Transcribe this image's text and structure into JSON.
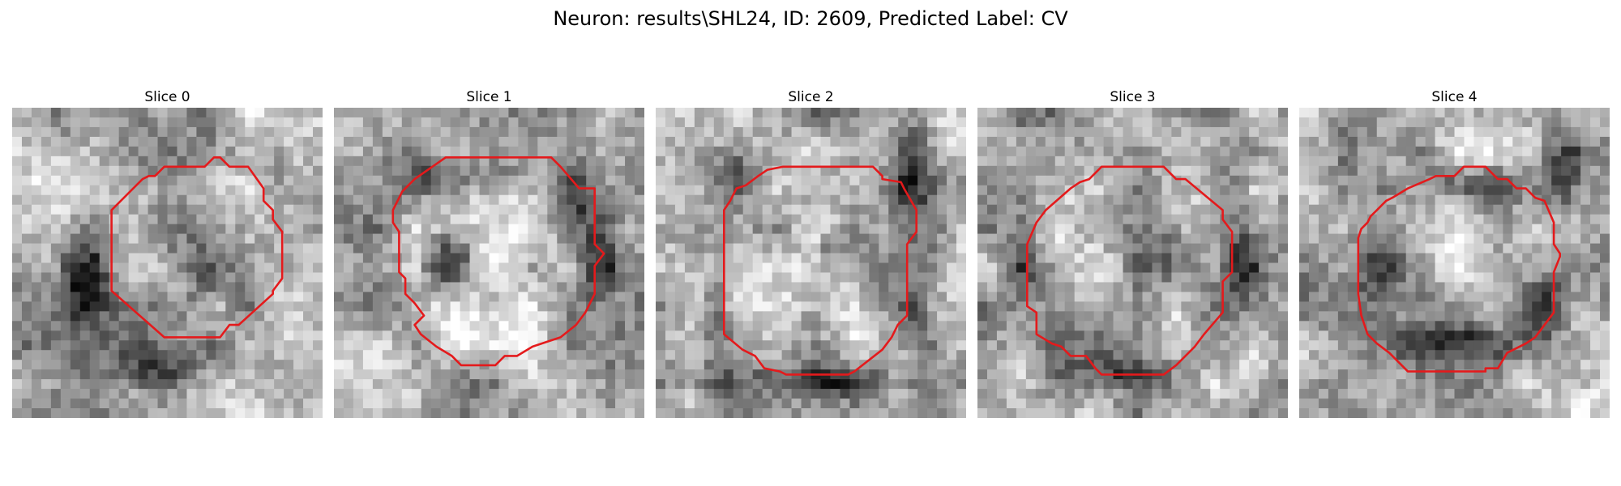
{
  "figure": {
    "title": "Neuron: results\\SHL24, ID: 2609, Predicted Label: CV"
  },
  "panels": [
    {
      "title": "Slice 0",
      "dark_blobs": [
        [
          0.22,
          0.55,
          0.08,
          0.14,
          0.85
        ],
        [
          0.45,
          0.82,
          0.12,
          0.08,
          0.6
        ],
        [
          0.62,
          0.55,
          0.1,
          0.1,
          0.45
        ],
        [
          0.85,
          0.2,
          0.06,
          0.1,
          0.35
        ]
      ],
      "light_blobs": [
        [
          0.53,
          0.54,
          0.07,
          0.07,
          0.7
        ],
        [
          0.2,
          0.2,
          0.15,
          0.12,
          0.35
        ],
        [
          0.5,
          0.95,
          0.3,
          0.06,
          0.3
        ]
      ],
      "contour": [
        [
          0.49,
          0.19
        ],
        [
          0.62,
          0.19
        ],
        [
          0.65,
          0.16
        ],
        [
          0.67,
          0.16
        ],
        [
          0.7,
          0.19
        ],
        [
          0.76,
          0.19
        ],
        [
          0.81,
          0.26
        ],
        [
          0.81,
          0.3
        ],
        [
          0.84,
          0.33
        ],
        [
          0.84,
          0.36
        ],
        [
          0.87,
          0.4
        ],
        [
          0.87,
          0.55
        ],
        [
          0.84,
          0.59
        ],
        [
          0.84,
          0.6
        ],
        [
          0.73,
          0.7
        ],
        [
          0.7,
          0.7
        ],
        [
          0.67,
          0.74
        ],
        [
          0.49,
          0.74
        ],
        [
          0.32,
          0.59
        ],
        [
          0.32,
          0.33
        ],
        [
          0.42,
          0.23
        ],
        [
          0.44,
          0.22
        ],
        [
          0.46,
          0.22
        ]
      ]
    },
    {
      "title": "Slice 1",
      "dark_blobs": [
        [
          0.37,
          0.5,
          0.08,
          0.1,
          0.9
        ],
        [
          0.78,
          0.28,
          0.08,
          0.14,
          0.8
        ],
        [
          0.85,
          0.5,
          0.06,
          0.12,
          0.7
        ],
        [
          0.3,
          0.2,
          0.12,
          0.08,
          0.5
        ],
        [
          0.5,
          0.22,
          0.12,
          0.06,
          0.45
        ]
      ],
      "light_blobs": [
        [
          0.55,
          0.45,
          0.15,
          0.15,
          0.55
        ],
        [
          0.4,
          0.65,
          0.12,
          0.12,
          0.55
        ],
        [
          0.55,
          0.7,
          0.1,
          0.08,
          0.4
        ]
      ],
      "contour": [
        [
          0.36,
          0.16
        ],
        [
          0.7,
          0.16
        ],
        [
          0.73,
          0.19
        ],
        [
          0.79,
          0.26
        ],
        [
          0.84,
          0.26
        ],
        [
          0.84,
          0.44
        ],
        [
          0.87,
          0.47
        ],
        [
          0.84,
          0.51
        ],
        [
          0.84,
          0.6
        ],
        [
          0.81,
          0.66
        ],
        [
          0.78,
          0.7
        ],
        [
          0.73,
          0.74
        ],
        [
          0.64,
          0.77
        ],
        [
          0.59,
          0.8
        ],
        [
          0.55,
          0.8
        ],
        [
          0.52,
          0.83
        ],
        [
          0.41,
          0.83
        ],
        [
          0.38,
          0.8
        ],
        [
          0.33,
          0.77
        ],
        [
          0.28,
          0.73
        ],
        [
          0.26,
          0.7
        ],
        [
          0.29,
          0.67
        ],
        [
          0.26,
          0.63
        ],
        [
          0.23,
          0.6
        ],
        [
          0.23,
          0.55
        ],
        [
          0.21,
          0.53
        ],
        [
          0.21,
          0.4
        ],
        [
          0.19,
          0.37
        ],
        [
          0.19,
          0.33
        ],
        [
          0.22,
          0.27
        ],
        [
          0.23,
          0.26
        ],
        [
          0.26,
          0.23
        ]
      ]
    },
    {
      "title": "Slice 2",
      "dark_blobs": [
        [
          0.82,
          0.2,
          0.06,
          0.18,
          0.8
        ],
        [
          0.5,
          0.88,
          0.3,
          0.05,
          0.75
        ],
        [
          0.2,
          0.7,
          0.05,
          0.18,
          0.6
        ],
        [
          0.85,
          0.65,
          0.06,
          0.15,
          0.55
        ],
        [
          0.25,
          0.2,
          0.1,
          0.06,
          0.4
        ],
        [
          0.55,
          0.45,
          0.08,
          0.05,
          0.4
        ]
      ],
      "light_blobs": [
        [
          0.45,
          0.55,
          0.2,
          0.2,
          0.5
        ],
        [
          0.1,
          0.92,
          0.08,
          0.06,
          0.6
        ],
        [
          0.95,
          0.1,
          0.05,
          0.1,
          0.4
        ]
      ],
      "contour": [
        [
          0.41,
          0.19
        ],
        [
          0.7,
          0.19
        ],
        [
          0.73,
          0.22
        ],
        [
          0.73,
          0.23
        ],
        [
          0.79,
          0.24
        ],
        [
          0.8,
          0.26
        ],
        [
          0.84,
          0.33
        ],
        [
          0.84,
          0.4
        ],
        [
          0.81,
          0.44
        ],
        [
          0.81,
          0.67
        ],
        [
          0.78,
          0.7
        ],
        [
          0.76,
          0.74
        ],
        [
          0.73,
          0.78
        ],
        [
          0.64,
          0.85
        ],
        [
          0.62,
          0.86
        ],
        [
          0.42,
          0.86
        ],
        [
          0.4,
          0.85
        ],
        [
          0.35,
          0.84
        ],
        [
          0.32,
          0.8
        ],
        [
          0.28,
          0.78
        ],
        [
          0.22,
          0.73
        ],
        [
          0.22,
          0.33
        ],
        [
          0.24,
          0.3
        ],
        [
          0.26,
          0.26
        ],
        [
          0.29,
          0.25
        ],
        [
          0.33,
          0.22
        ],
        [
          0.36,
          0.2
        ]
      ]
    },
    {
      "title": "Slice 3",
      "dark_blobs": [
        [
          0.85,
          0.45,
          0.06,
          0.14,
          0.75
        ],
        [
          0.25,
          0.75,
          0.08,
          0.08,
          0.6
        ],
        [
          0.45,
          0.85,
          0.15,
          0.05,
          0.55
        ],
        [
          0.8,
          0.25,
          0.06,
          0.1,
          0.45
        ],
        [
          0.55,
          0.45,
          0.12,
          0.12,
          0.35
        ],
        [
          0.15,
          0.5,
          0.05,
          0.15,
          0.45
        ]
      ],
      "light_blobs": [
        [
          0.4,
          0.5,
          0.1,
          0.12,
          0.45
        ],
        [
          0.6,
          0.3,
          0.1,
          0.08,
          0.4
        ],
        [
          0.9,
          0.85,
          0.08,
          0.1,
          0.4
        ]
      ],
      "contour": [
        [
          0.36,
          0.23
        ],
        [
          0.4,
          0.19
        ],
        [
          0.6,
          0.19
        ],
        [
          0.64,
          0.23
        ],
        [
          0.67,
          0.23
        ],
        [
          0.79,
          0.33
        ],
        [
          0.79,
          0.36
        ],
        [
          0.82,
          0.4
        ],
        [
          0.82,
          0.53
        ],
        [
          0.79,
          0.56
        ],
        [
          0.79,
          0.66
        ],
        [
          0.73,
          0.73
        ],
        [
          0.7,
          0.77
        ],
        [
          0.64,
          0.83
        ],
        [
          0.6,
          0.86
        ],
        [
          0.4,
          0.86
        ],
        [
          0.38,
          0.84
        ],
        [
          0.35,
          0.8
        ],
        [
          0.3,
          0.8
        ],
        [
          0.27,
          0.77
        ],
        [
          0.24,
          0.76
        ],
        [
          0.19,
          0.73
        ],
        [
          0.19,
          0.66
        ],
        [
          0.16,
          0.64
        ],
        [
          0.16,
          0.44
        ],
        [
          0.19,
          0.37
        ],
        [
          0.22,
          0.33
        ],
        [
          0.3,
          0.26
        ],
        [
          0.33,
          0.24
        ]
      ]
    },
    {
      "title": "Slice 4",
      "dark_blobs": [
        [
          0.52,
          0.76,
          0.3,
          0.07,
          0.95
        ],
        [
          0.25,
          0.55,
          0.08,
          0.18,
          0.6
        ],
        [
          0.8,
          0.6,
          0.08,
          0.15,
          0.55
        ],
        [
          0.55,
          0.25,
          0.25,
          0.06,
          0.5
        ],
        [
          0.85,
          0.2,
          0.06,
          0.15,
          0.6
        ],
        [
          0.15,
          0.15,
          0.05,
          0.12,
          0.45
        ]
      ],
      "light_blobs": [
        [
          0.55,
          0.45,
          0.18,
          0.12,
          0.6
        ],
        [
          0.6,
          0.1,
          0.15,
          0.08,
          0.4
        ],
        [
          0.9,
          0.95,
          0.1,
          0.05,
          0.4
        ]
      ],
      "contour": [
        [
          0.35,
          0.26
        ],
        [
          0.42,
          0.23
        ],
        [
          0.44,
          0.22
        ],
        [
          0.5,
          0.22
        ],
        [
          0.53,
          0.19
        ],
        [
          0.6,
          0.19
        ],
        [
          0.64,
          0.23
        ],
        [
          0.67,
          0.23
        ],
        [
          0.7,
          0.26
        ],
        [
          0.73,
          0.26
        ],
        [
          0.76,
          0.29
        ],
        [
          0.79,
          0.3
        ],
        [
          0.82,
          0.37
        ],
        [
          0.82,
          0.44
        ],
        [
          0.84,
          0.47
        ],
        [
          0.84,
          0.48
        ],
        [
          0.82,
          0.53
        ],
        [
          0.82,
          0.66
        ],
        [
          0.76,
          0.74
        ],
        [
          0.73,
          0.76
        ],
        [
          0.67,
          0.79
        ],
        [
          0.64,
          0.84
        ],
        [
          0.6,
          0.84
        ],
        [
          0.6,
          0.85
        ],
        [
          0.35,
          0.85
        ],
        [
          0.29,
          0.79
        ],
        [
          0.25,
          0.76
        ],
        [
          0.22,
          0.73
        ],
        [
          0.2,
          0.67
        ],
        [
          0.19,
          0.6
        ],
        [
          0.19,
          0.42
        ],
        [
          0.2,
          0.39
        ],
        [
          0.22,
          0.37
        ],
        [
          0.23,
          0.35
        ],
        [
          0.25,
          0.33
        ],
        [
          0.28,
          0.3
        ],
        [
          0.3,
          0.29
        ]
      ]
    }
  ],
  "contour_color": "#e41a1c"
}
